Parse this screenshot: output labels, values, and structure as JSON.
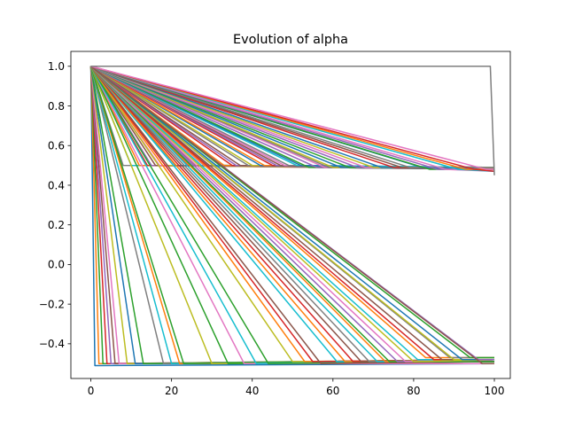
{
  "chart_data": {
    "type": "line",
    "title": "Evolution of alpha",
    "xlabel": "",
    "ylabel": "",
    "xlim": [
      -4.95,
      103.95
    ],
    "ylim": [
      -0.575,
      1.075
    ],
    "xticks": [
      0,
      20,
      40,
      60,
      80,
      100
    ],
    "xtick_labels": [
      "0",
      "20",
      "40",
      "60",
      "80",
      "100"
    ],
    "yticks": [
      -0.4,
      -0.2,
      0.0,
      0.2,
      0.4,
      0.6,
      0.8,
      1.0
    ],
    "ytick_labels": [
      "−0.4",
      "−0.2",
      "0.0",
      "0.2",
      "0.4",
      "0.6",
      "0.8",
      "1.0"
    ],
    "grid": false,
    "legend": false,
    "color_cycle": [
      "#1f77b4",
      "#ff7f0e",
      "#2ca02c",
      "#d62728",
      "#9467bd",
      "#8c564b",
      "#e377c2",
      "#7f7f7f",
      "#bcbd22",
      "#17becf"
    ],
    "series": [
      {
        "x": [
          0,
          1,
          100
        ],
        "y": [
          1.0,
          -0.51,
          -0.5
        ]
      },
      {
        "x": [
          0,
          2,
          100
        ],
        "y": [
          1.0,
          -0.5,
          -0.49
        ]
      },
      {
        "x": [
          0,
          3,
          100
        ],
        "y": [
          1.0,
          -0.5,
          -0.49
        ]
      },
      {
        "x": [
          0,
          4,
          100
        ],
        "y": [
          1.0,
          -0.5,
          -0.48
        ]
      },
      {
        "x": [
          0,
          5,
          100
        ],
        "y": [
          1.0,
          -0.5,
          -0.48
        ]
      },
      {
        "x": [
          0,
          6,
          100
        ],
        "y": [
          1.0,
          -0.5,
          -0.49
        ]
      },
      {
        "x": [
          0,
          7,
          100
        ],
        "y": [
          1.0,
          -0.5,
          -0.5
        ]
      },
      {
        "x": [
          0,
          8,
          100
        ],
        "y": [
          1.0,
          0.5,
          0.49
        ]
      },
      {
        "x": [
          0,
          9,
          100
        ],
        "y": [
          1.0,
          -0.5,
          -0.48
        ]
      },
      {
        "x": [
          0,
          10,
          100
        ],
        "y": [
          1.0,
          0.5,
          0.49
        ]
      },
      {
        "x": [
          0,
          11,
          100
        ],
        "y": [
          1.0,
          -0.5,
          -0.49
        ]
      },
      {
        "x": [
          0,
          12,
          100
        ],
        "y": [
          1.0,
          0.5,
          0.48
        ]
      },
      {
        "x": [
          0,
          13,
          100
        ],
        "y": [
          1.0,
          -0.5,
          -0.48
        ]
      },
      {
        "x": [
          0,
          14,
          100
        ],
        "y": [
          1.0,
          0.5,
          0.49
        ]
      },
      {
        "x": [
          0,
          15,
          100
        ],
        "y": [
          1.0,
          0.5,
          0.48
        ]
      },
      {
        "x": [
          0,
          16,
          100
        ],
        "y": [
          1.0,
          0.5,
          0.49
        ]
      },
      {
        "x": [
          0,
          17,
          100
        ],
        "y": [
          1.0,
          0.5,
          0.49
        ]
      },
      {
        "x": [
          0,
          18,
          100
        ],
        "y": [
          1.0,
          -0.5,
          -0.49
        ]
      },
      {
        "x": [
          0,
          19,
          100
        ],
        "y": [
          1.0,
          0.5,
          0.48
        ]
      },
      {
        "x": [
          0,
          20,
          100
        ],
        "y": [
          1.0,
          -0.5,
          -0.48
        ]
      },
      {
        "x": [
          0,
          21,
          100
        ],
        "y": [
          1.0,
          0.5,
          0.49
        ]
      },
      {
        "x": [
          0,
          22,
          100
        ],
        "y": [
          1.0,
          -0.5,
          -0.49
        ]
      },
      {
        "x": [
          0,
          23,
          100
        ],
        "y": [
          1.0,
          -0.5,
          -0.48
        ]
      },
      {
        "x": [
          0,
          24,
          100
        ],
        "y": [
          1.0,
          0.5,
          0.49
        ]
      },
      {
        "x": [
          0,
          25,
          100
        ],
        "y": [
          1.0,
          0.5,
          0.49
        ]
      },
      {
        "x": [
          0,
          26,
          100
        ],
        "y": [
          1.0,
          0.5,
          0.48
        ]
      },
      {
        "x": [
          0,
          28,
          100
        ],
        "y": [
          1.0,
          0.5,
          0.49
        ]
      },
      {
        "x": [
          0,
          29,
          100
        ],
        "y": [
          1.0,
          0.5,
          0.48
        ]
      },
      {
        "x": [
          0,
          30,
          100
        ],
        "y": [
          1.0,
          -0.5,
          -0.49
        ]
      },
      {
        "x": [
          0,
          31,
          100
        ],
        "y": [
          1.0,
          0.5,
          0.49
        ]
      },
      {
        "x": [
          0,
          32,
          100
        ],
        "y": [
          1.0,
          0.5,
          0.48
        ]
      },
      {
        "x": [
          0,
          33,
          100
        ],
        "y": [
          1.0,
          0.5,
          0.48
        ]
      },
      {
        "x": [
          0,
          34,
          100
        ],
        "y": [
          1.0,
          -0.5,
          -0.49
        ]
      },
      {
        "x": [
          0,
          35,
          100
        ],
        "y": [
          1.0,
          0.5,
          0.49
        ]
      },
      {
        "x": [
          0,
          36,
          100
        ],
        "y": [
          1.0,
          0.5,
          0.48
        ]
      },
      {
        "x": [
          0,
          37,
          100
        ],
        "y": [
          1.0,
          0.5,
          0.49
        ]
      },
      {
        "x": [
          0,
          38,
          100
        ],
        "y": [
          1.0,
          -0.5,
          -0.49
        ]
      },
      {
        "x": [
          0,
          39,
          100
        ],
        "y": [
          1.0,
          0.5,
          0.48
        ]
      },
      {
        "x": [
          0,
          40,
          100
        ],
        "y": [
          1.0,
          0.5,
          0.49
        ]
      },
      {
        "x": [
          0,
          41,
          100
        ],
        "y": [
          1.0,
          -0.5,
          -0.48
        ]
      },
      {
        "x": [
          0,
          42,
          100
        ],
        "y": [
          1.0,
          0.5,
          0.48
        ]
      },
      {
        "x": [
          0,
          43,
          100
        ],
        "y": [
          1.0,
          0.5,
          0.49
        ]
      },
      {
        "x": [
          0,
          44,
          100
        ],
        "y": [
          1.0,
          -0.5,
          -0.49
        ]
      },
      {
        "x": [
          0,
          45,
          100
        ],
        "y": [
          1.0,
          0.5,
          0.48
        ]
      },
      {
        "x": [
          0,
          46,
          100
        ],
        "y": [
          1.0,
          0.5,
          0.49
        ]
      },
      {
        "x": [
          0,
          47,
          100
        ],
        "y": [
          1.0,
          0.5,
          0.48
        ]
      },
      {
        "x": [
          0,
          48,
          100
        ],
        "y": [
          1.0,
          0.5,
          0.49
        ]
      },
      {
        "x": [
          0,
          49,
          100
        ],
        "y": [
          1.0,
          0.5,
          0.48
        ]
      },
      {
        "x": [
          0,
          50,
          100
        ],
        "y": [
          1.0,
          -0.49,
          -0.48
        ]
      },
      {
        "x": [
          0,
          51,
          100
        ],
        "y": [
          1.0,
          0.5,
          0.49
        ]
      },
      {
        "x": [
          0,
          52,
          100
        ],
        "y": [
          1.0,
          0.5,
          0.48
        ]
      },
      {
        "x": [
          0,
          53,
          100
        ],
        "y": [
          1.0,
          -0.49,
          -0.48
        ]
      },
      {
        "x": [
          0,
          54,
          100
        ],
        "y": [
          1.0,
          0.49,
          0.48
        ]
      },
      {
        "x": [
          0,
          55,
          100
        ],
        "y": [
          1.0,
          -0.49,
          -0.48
        ]
      },
      {
        "x": [
          0,
          56,
          100
        ],
        "y": [
          1.0,
          0.49,
          0.48
        ]
      },
      {
        "x": [
          0,
          57,
          100
        ],
        "y": [
          1.0,
          -0.5,
          -0.49
        ]
      },
      {
        "x": [
          0,
          58,
          100
        ],
        "y": [
          1.0,
          0.49,
          0.48
        ]
      },
      {
        "x": [
          0,
          59,
          100
        ],
        "y": [
          1.0,
          0.49,
          0.48
        ]
      },
      {
        "x": [
          0,
          60,
          100
        ],
        "y": [
          1.0,
          0.49,
          0.49
        ]
      },
      {
        "x": [
          0,
          61,
          100
        ],
        "y": [
          1.0,
          -0.49,
          -0.48
        ]
      },
      {
        "x": [
          0,
          62,
          100
        ],
        "y": [
          1.0,
          0.49,
          0.48
        ]
      },
      {
        "x": [
          0,
          63,
          100
        ],
        "y": [
          1.0,
          -0.49,
          -0.48
        ]
      },
      {
        "x": [
          0,
          64,
          100
        ],
        "y": [
          1.0,
          0.49,
          0.48
        ]
      },
      {
        "x": [
          0,
          65,
          100
        ],
        "y": [
          1.0,
          -0.49,
          -0.48
        ]
      },
      {
        "x": [
          0,
          66,
          100
        ],
        "y": [
          1.0,
          0.49,
          0.48
        ]
      },
      {
        "x": [
          0,
          67,
          100
        ],
        "y": [
          1.0,
          -0.49,
          -0.48
        ]
      },
      {
        "x": [
          0,
          68,
          100
        ],
        "y": [
          1.0,
          0.49,
          0.48
        ]
      },
      {
        "x": [
          0,
          69,
          100
        ],
        "y": [
          1.0,
          -0.49,
          -0.49
        ]
      },
      {
        "x": [
          0,
          70,
          100
        ],
        "y": [
          1.0,
          0.49,
          0.48
        ]
      },
      {
        "x": [
          0,
          71,
          100
        ],
        "y": [
          1.0,
          -0.49,
          -0.48
        ]
      },
      {
        "x": [
          0,
          72,
          100
        ],
        "y": [
          1.0,
          0.49,
          0.48
        ]
      },
      {
        "x": [
          0,
          73,
          100
        ],
        "y": [
          1.0,
          -0.49,
          -0.48
        ]
      },
      {
        "x": [
          0,
          74,
          100
        ],
        "y": [
          1.0,
          -0.49,
          -0.49
        ]
      },
      {
        "x": [
          0,
          75,
          100
        ],
        "y": [
          1.0,
          0.49,
          0.48
        ]
      },
      {
        "x": [
          0,
          76,
          100
        ],
        "y": [
          1.0,
          -0.49,
          -0.48
        ]
      },
      {
        "x": [
          0,
          77,
          100
        ],
        "y": [
          1.0,
          0.49,
          0.48
        ]
      },
      {
        "x": [
          0,
          78,
          100
        ],
        "y": [
          1.0,
          -0.49,
          -0.48
        ]
      },
      {
        "x": [
          0,
          79,
          100
        ],
        "y": [
          1.0,
          0.49,
          0.49
        ]
      },
      {
        "x": [
          0,
          80,
          100
        ],
        "y": [
          1.0,
          -0.49,
          -0.48
        ]
      },
      {
        "x": [
          0,
          81,
          100
        ],
        "y": [
          1.0,
          -0.48,
          -0.48
        ]
      },
      {
        "x": [
          0,
          82,
          100
        ],
        "y": [
          1.0,
          0.49,
          0.48
        ]
      },
      {
        "x": [
          0,
          83,
          100
        ],
        "y": [
          1.0,
          -0.47,
          -0.47
        ]
      },
      {
        "x": [
          0,
          84,
          100
        ],
        "y": [
          1.0,
          0.48,
          0.48
        ]
      },
      {
        "x": [
          0,
          85,
          100
        ],
        "y": [
          1.0,
          -0.48,
          -0.48
        ]
      },
      {
        "x": [
          0,
          86,
          100
        ],
        "y": [
          1.0,
          0.48,
          0.48
        ]
      },
      {
        "x": [
          0,
          87,
          100
        ],
        "y": [
          1.0,
          -0.48,
          -0.48
        ]
      },
      {
        "x": [
          0,
          88,
          100
        ],
        "y": [
          1.0,
          0.48,
          0.47
        ]
      },
      {
        "x": [
          0,
          89,
          100
        ],
        "y": [
          1.0,
          -0.47,
          -0.47
        ]
      },
      {
        "x": [
          0,
          90,
          100
        ],
        "y": [
          1.0,
          -0.48,
          -0.48
        ]
      },
      {
        "x": [
          0,
          91,
          100
        ],
        "y": [
          1.0,
          0.48,
          0.47
        ]
      },
      {
        "x": [
          0,
          92,
          100
        ],
        "y": [
          1.0,
          -0.48,
          -0.48
        ]
      },
      {
        "x": [
          0,
          93,
          100
        ],
        "y": [
          1.0,
          0.48,
          0.48
        ]
      },
      {
        "x": [
          0,
          94,
          100
        ],
        "y": [
          1.0,
          -0.47,
          -0.47
        ]
      },
      {
        "x": [
          0,
          95,
          100
        ],
        "y": [
          1.0,
          0.48,
          0.47
        ]
      },
      {
        "x": [
          0,
          96,
          100
        ],
        "y": [
          1.0,
          -0.48,
          -0.48
        ]
      },
      {
        "x": [
          0,
          97,
          100
        ],
        "y": [
          1.0,
          -0.5,
          -0.5
        ]
      },
      {
        "x": [
          0,
          98,
          100
        ],
        "y": [
          1.0,
          0.48,
          0.48
        ]
      },
      {
        "x": [
          0,
          99,
          100
        ],
        "y": [
          1.0,
          1.0,
          0.45
        ]
      }
    ]
  }
}
